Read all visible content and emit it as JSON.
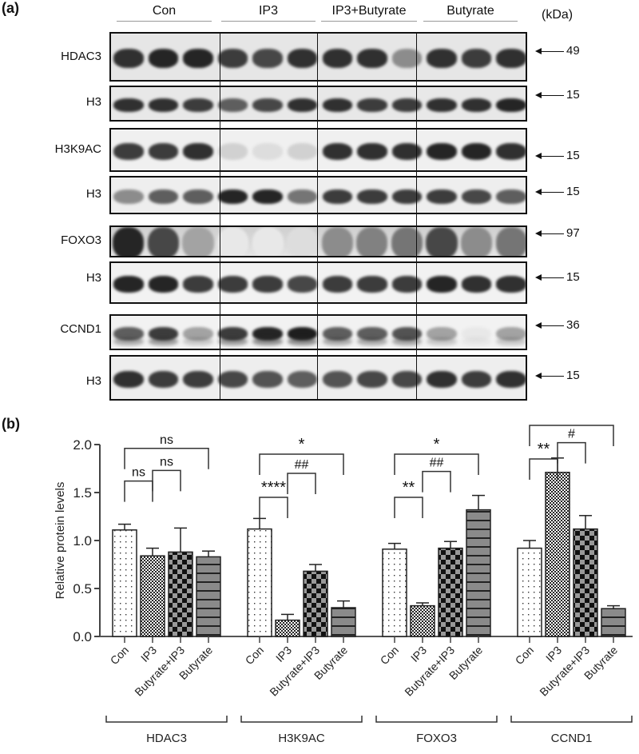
{
  "panel_a": {
    "label": "(a)",
    "kda_label": "(kDa)",
    "groups": [
      "Con",
      "IP3",
      "IP3+Butyrate",
      "Butyrate"
    ],
    "blots": [
      {
        "name": "HDAC3",
        "kda": "49"
      },
      {
        "name": "H3",
        "kda": "15"
      },
      {
        "name": "H3K9AC",
        "kda": "15"
      },
      {
        "name": "H3",
        "kda": "15"
      },
      {
        "name": "FOXO3",
        "kda": "97"
      },
      {
        "name": "H3",
        "kda": "15"
      },
      {
        "name": "CCND1",
        "kda": "36"
      },
      {
        "name": "H3",
        "kda": "15"
      }
    ]
  },
  "panel_b": {
    "label": "(b)"
  },
  "chart_data": {
    "type": "bar",
    "title": "",
    "xlabel": "",
    "ylabel": "Relative protein levels",
    "ylim": [
      0,
      2.0
    ],
    "yticks": [
      "0.0",
      "0.5",
      "1.0",
      "1.5",
      "2.0"
    ],
    "categories": [
      "Con",
      "IP3",
      "Butyrate+IP3",
      "Butyrate"
    ],
    "groups": [
      "HDAC3",
      "H3K9AC",
      "FOXO3",
      "CCND1"
    ],
    "series": [
      {
        "name": "HDAC3",
        "values": [
          1.11,
          0.84,
          0.88,
          0.83
        ],
        "errors": [
          0.06,
          0.08,
          0.25,
          0.06
        ]
      },
      {
        "name": "H3K9AC",
        "values": [
          1.12,
          0.17,
          0.68,
          0.3
        ],
        "errors": [
          0.11,
          0.06,
          0.07,
          0.07
        ]
      },
      {
        "name": "FOXO3",
        "values": [
          0.91,
          0.32,
          0.92,
          1.32
        ],
        "errors": [
          0.06,
          0.03,
          0.07,
          0.15
        ]
      },
      {
        "name": "CCND1",
        "values": [
          0.92,
          1.71,
          1.12,
          0.29
        ],
        "errors": [
          0.08,
          0.15,
          0.14,
          0.03
        ]
      }
    ],
    "legend_position": "none",
    "grid": false,
    "annotations": [
      {
        "group": "HDAC3",
        "labels": [
          "ns",
          "ns",
          "ns"
        ]
      },
      {
        "group": "H3K9AC",
        "labels": [
          "****",
          "##",
          "*"
        ]
      },
      {
        "group": "FOXO3",
        "labels": [
          "**",
          "##",
          "*"
        ]
      },
      {
        "group": "CCND1",
        "labels": [
          "**",
          "#",
          "*"
        ]
      }
    ]
  }
}
